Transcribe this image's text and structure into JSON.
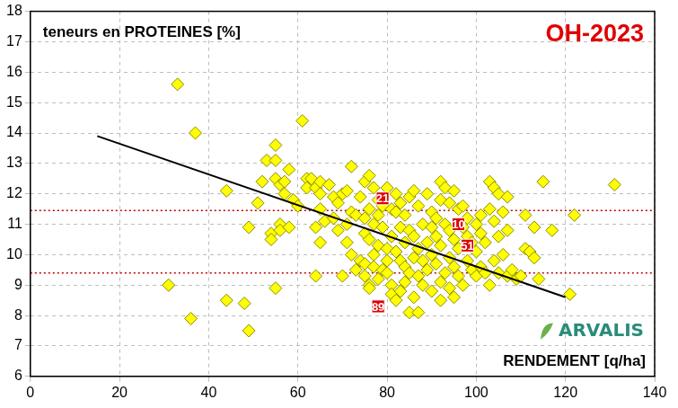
{
  "chart_data": {
    "type": "scatter",
    "title": "OH-2023",
    "y_label": "teneurs en PROTEINES [%]",
    "x_label": "RENDEMENT [q/ha]",
    "logo": "ARVALIS",
    "xlim": [
      0,
      140
    ],
    "xticks": [
      0,
      20,
      40,
      60,
      80,
      100,
      120,
      140
    ],
    "ylim": [
      6,
      18
    ],
    "yticks": [
      6,
      7,
      8,
      9,
      10,
      11,
      12,
      13,
      14,
      15,
      16,
      17,
      18
    ],
    "grid": true,
    "series": [
      {
        "type": "line",
        "line_style": "dotted",
        "color": "#c00000",
        "x": [
          0,
          140
        ],
        "values": [
          11.45,
          11.45
        ]
      },
      {
        "type": "line",
        "line_style": "dotted",
        "color": "#c00000",
        "x": [
          0,
          140
        ],
        "values": [
          9.4,
          9.4
        ]
      },
      {
        "type": "scatter",
        "marker": "diamond",
        "color": "#ffff00",
        "x": [
          33,
          37,
          31,
          36,
          44,
          44,
          48,
          49,
          49,
          51,
          52,
          53,
          55,
          55,
          55,
          54,
          54,
          55,
          56,
          56,
          56,
          57,
          57,
          58,
          58,
          59,
          60,
          61,
          62,
          62,
          63,
          64,
          64,
          64,
          65,
          65,
          65,
          65,
          66,
          67,
          68,
          68,
          69,
          69,
          70,
          70,
          71,
          71,
          71,
          72,
          72,
          72,
          73,
          73,
          74,
          74,
          75,
          75,
          75,
          75,
          75,
          76,
          76,
          76,
          76,
          76,
          77,
          77,
          77,
          77,
          78,
          78,
          78,
          78,
          79,
          79,
          79,
          80,
          80,
          80,
          80,
          81,
          81,
          81,
          81,
          82,
          82,
          82,
          82,
          83,
          83,
          83,
          83,
          84,
          84,
          84,
          84,
          85,
          85,
          85,
          85,
          86,
          86,
          86,
          86,
          87,
          87,
          87,
          87,
          88,
          88,
          88,
          89,
          89,
          89,
          90,
          90,
          90,
          90,
          91,
          91,
          91,
          92,
          92,
          92,
          92,
          92,
          93,
          93,
          93,
          94,
          94,
          94,
          94,
          95,
          95,
          95,
          95,
          96,
          96,
          96,
          97,
          97,
          97,
          98,
          98,
          98,
          99,
          99,
          100,
          100,
          100,
          101,
          101,
          101,
          102,
          102,
          103,
          103,
          103,
          104,
          104,
          104,
          105,
          105,
          105,
          106,
          106,
          107,
          107,
          107,
          108,
          109,
          110,
          111,
          111,
          112,
          113,
          113,
          114,
          115,
          117,
          121,
          122,
          131
        ],
        "values": [
          15.6,
          14.0,
          9.0,
          7.9,
          12.1,
          8.5,
          8.4,
          7.5,
          10.9,
          11.7,
          12.4,
          13.1,
          13.6,
          13.1,
          12.5,
          10.7,
          10.5,
          8.9,
          12.3,
          11.0,
          10.8,
          12.4,
          12.0,
          12.8,
          10.9,
          11.8,
          11.6,
          14.4,
          12.5,
          12.2,
          12.5,
          12.2,
          10.9,
          9.3,
          12.4,
          12.0,
          11.5,
          10.4,
          11.1,
          12.3,
          11.2,
          11.9,
          11.7,
          10.8,
          12.0,
          9.3,
          12.1,
          11.0,
          10.4,
          12.9,
          11.4,
          10.0,
          9.5,
          11.3,
          9.8,
          11.9,
          12.4,
          11.2,
          10.7,
          9.7,
          9.3,
          12.6,
          11.5,
          10.5,
          9.0,
          8.9,
          12.2,
          11.0,
          10.0,
          9.6,
          11.8,
          11.3,
          10.3,
          9.2,
          11.6,
          10.9,
          9.5,
          12.2,
          10.2,
          9.8,
          9.4,
          11.5,
          10.6,
          9.0,
          8.7,
          12.0,
          11.4,
          10.1,
          8.5,
          11.7,
          10.9,
          9.8,
          8.8,
          11.3,
          10.4,
          9.6,
          9.1,
          11.9,
          10.8,
          9.4,
          8.1,
          12.1,
          10.6,
          9.9,
          8.6,
          11.6,
          10.2,
          9.3,
          8.1,
          11.0,
          9.8,
          9.0,
          12.0,
          10.4,
          9.5,
          11.4,
          10.9,
          10.0,
          8.8,
          11.2,
          10.6,
          9.7,
          12.4,
          11.8,
          10.3,
          9.1,
          8.5,
          12.2,
          11.0,
          9.4,
          11.7,
          10.8,
          9.9,
          8.9,
          12.1,
          10.5,
          9.6,
          8.6,
          11.5,
          10.2,
          9.3,
          11.6,
          10.9,
          9.0,
          11.2,
          10.6,
          9.8,
          10.4,
          9.5,
          11.0,
          10.1,
          9.3,
          11.3,
          10.7,
          9.6,
          10.4,
          9.4,
          12.4,
          11.5,
          9.0,
          12.2,
          11.1,
          9.8,
          12.0,
          10.6,
          9.4,
          11.4,
          10.0,
          11.9,
          10.8,
          9.3,
          9.5,
          9.2,
          9.3,
          11.3,
          10.2,
          10.1,
          10.9,
          9.9,
          9.2,
          12.4,
          10.8,
          8.7,
          11.3,
          12.3
        ]
      },
      {
        "type": "line",
        "line_style": "solid",
        "color": "#000000",
        "x": [
          15,
          120
        ],
        "values": [
          13.9,
          8.6
        ]
      },
      {
        "type": "scatter",
        "marker": "square",
        "color": "#e00000",
        "x": [
          79,
          96,
          98,
          78
        ],
        "values": [
          11.85,
          11.0,
          10.3,
          8.3
        ],
        "labels": [
          "21",
          "10",
          "51",
          "89"
        ]
      }
    ]
  }
}
